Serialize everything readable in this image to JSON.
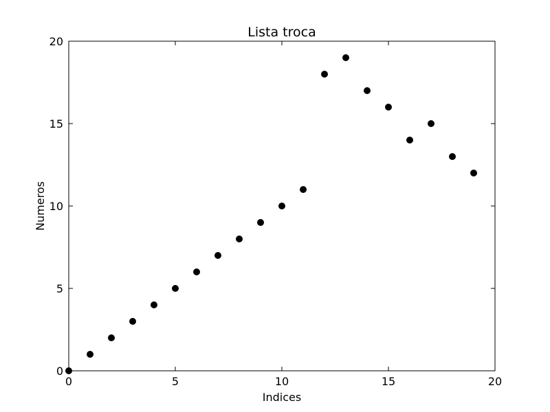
{
  "chart_data": {
    "type": "scatter",
    "title": "Lista troca",
    "xlabel": "Indices",
    "ylabel": "Numeros",
    "xlim": [
      0,
      20
    ],
    "ylim": [
      0,
      20
    ],
    "xticks": [
      0,
      5,
      10,
      15,
      20
    ],
    "yticks": [
      0,
      5,
      10,
      15,
      20
    ],
    "grid": false,
    "marker_color": "#000000",
    "series": [
      {
        "x": [
          0,
          1,
          2,
          3,
          4,
          5,
          6,
          7,
          8,
          9,
          10,
          11,
          12,
          13,
          14,
          15,
          16,
          17,
          18,
          19
        ],
        "y": [
          0,
          1,
          2,
          3,
          4,
          5,
          6,
          7,
          8,
          9,
          10,
          11,
          18,
          19,
          17,
          16,
          14,
          15,
          13,
          12
        ]
      }
    ]
  }
}
